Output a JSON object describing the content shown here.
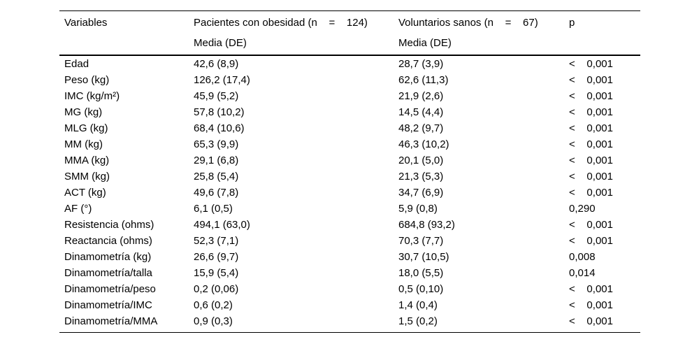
{
  "colors": {
    "background": "#ffffff",
    "text": "#000000",
    "rule": "#000000"
  },
  "table": {
    "header": {
      "variables": "Variables",
      "group_obese": "Pacientes con obesidad (n    =    124)",
      "group_obese_sub": "Media (DE)",
      "group_healthy": "Voluntarios sanos (n    =    67)",
      "group_healthy_sub": "Media (DE)",
      "p": "p"
    },
    "rows": [
      {
        "variable": "Edad",
        "obese_mean": "42,6 (8,9)",
        "healthy_mean": "28,7 (3,9)",
        "p": "<    0,001"
      },
      {
        "variable": "Peso (kg)",
        "obese_mean": "126,2 (17,4)",
        "healthy_mean": "62,6 (11,3)",
        "p": "<    0,001"
      },
      {
        "variable": "IMC (kg/m²)",
        "obese_mean": "45,9 (5,2)",
        "healthy_mean": "21,9 (2,6)",
        "p": "<    0,001"
      },
      {
        "variable": "MG (kg)",
        "obese_mean": "57,8 (10,2)",
        "healthy_mean": "14,5 (4,4)",
        "p": "<    0,001"
      },
      {
        "variable": "MLG (kg)",
        "obese_mean": "68,4 (10,6)",
        "healthy_mean": "48,2 (9,7)",
        "p": "<    0,001"
      },
      {
        "variable": "MM (kg)",
        "obese_mean": "65,3 (9,9)",
        "healthy_mean": "46,3 (10,2)",
        "p": "<    0,001"
      },
      {
        "variable": "MMA (kg)",
        "obese_mean": "29,1 (6,8)",
        "healthy_mean": "20,1 (5,0)",
        "p": "<    0,001"
      },
      {
        "variable": "SMM (kg)",
        "obese_mean": "25,8 (5,4)",
        "healthy_mean": "21,3 (5,3)",
        "p": "<    0,001"
      },
      {
        "variable": "ACT (kg)",
        "obese_mean": "49,6 (7,8)",
        "healthy_mean": "34,7 (6,9)",
        "p": "<    0,001"
      },
      {
        "variable": "AF (°)",
        "obese_mean": "6,1 (0,5)",
        "healthy_mean": "5,9 (0,8)",
        "p": "0,290"
      },
      {
        "variable": "Resistencia (ohms)",
        "obese_mean": "494,1 (63,0)",
        "healthy_mean": "684,8 (93,2)",
        "p": "<    0,001"
      },
      {
        "variable": "Reactancia (ohms)",
        "obese_mean": "52,3 (7,1)",
        "healthy_mean": "70,3 (7,7)",
        "p": "<    0,001"
      },
      {
        "variable": "Dinamometría (kg)",
        "obese_mean": "26,6 (9,7)",
        "healthy_mean": "30,7 (10,5)",
        "p": "0,008"
      },
      {
        "variable": "Dinamometría/talla",
        "obese_mean": "15,9 (5,4)",
        "healthy_mean": "18,0 (5,5)",
        "p": "0,014"
      },
      {
        "variable": "Dinamometría/peso",
        "obese_mean": "0,2 (0,06)",
        "healthy_mean": "0,5 (0,10)",
        "p": "<    0,001"
      },
      {
        "variable": "Dinamometría/IMC",
        "obese_mean": "0,6 (0,2)",
        "healthy_mean": "1,4 (0,4)",
        "p": "<    0,001"
      },
      {
        "variable": "Dinamometría/MMA",
        "obese_mean": "0,9 (0,3)",
        "healthy_mean": "1,5 (0,2)",
        "p": "<    0,001"
      }
    ]
  }
}
